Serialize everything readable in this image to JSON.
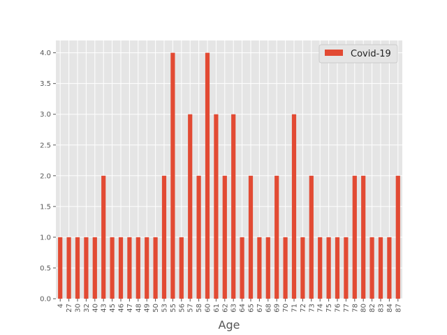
{
  "chart_data": {
    "type": "bar",
    "categories": [
      "4",
      "27",
      "30",
      "32",
      "40",
      "43",
      "45",
      "46",
      "47",
      "48",
      "49",
      "50",
      "53",
      "55",
      "56",
      "57",
      "58",
      "60",
      "61",
      "62",
      "63",
      "64",
      "65",
      "67",
      "68",
      "69",
      "70",
      "71",
      "72",
      "73",
      "74",
      "75",
      "76",
      "77",
      "78",
      "80",
      "82",
      "83",
      "84",
      "87"
    ],
    "series": [
      {
        "name": "Covid-19",
        "color": "#E24A33",
        "values": [
          1,
          1,
          1,
          1,
          1,
          2,
          1,
          1,
          1,
          1,
          1,
          1,
          2,
          4,
          1,
          3,
          2,
          4,
          3,
          2,
          3,
          1,
          2,
          1,
          1,
          2,
          1,
          3,
          1,
          2,
          1,
          1,
          1,
          1,
          2,
          2,
          1,
          1,
          1,
          2
        ]
      }
    ],
    "xlabel": "Age",
    "ylabel": "",
    "ylim": [
      0,
      4.2
    ],
    "yticks": [
      "0.0",
      "0.5",
      "1.0",
      "1.5",
      "2.0",
      "2.5",
      "3.0",
      "3.5",
      "4.0"
    ],
    "grid": true,
    "legend_position": "top-right",
    "background": "#E5E5E5"
  }
}
